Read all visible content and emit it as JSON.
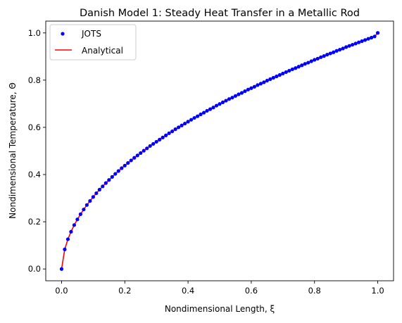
{
  "chart_data": {
    "type": "line",
    "title": "Danish Model 1: Steady Heat Transfer in a Metallic Rod",
    "xlabel": "Nondimensional Length, ξ",
    "ylabel": "Nondimensional Temperature, Θ",
    "xlim": [
      -0.05,
      1.05
    ],
    "ylim": [
      -0.05,
      1.05
    ],
    "xticks": [
      "0.0",
      "0.2",
      "0.4",
      "0.6",
      "0.8",
      "1.0"
    ],
    "yticks": [
      "0.0",
      "0.2",
      "0.4",
      "0.6",
      "0.8",
      "1.0"
    ],
    "grid": false,
    "legend_position": "top-left",
    "series": [
      {
        "name": "JOTS",
        "style": "markers",
        "color": "#0000ff",
        "x": [
          0.0,
          0.01,
          0.02,
          0.03,
          0.04,
          0.05,
          0.06,
          0.07,
          0.08,
          0.09,
          0.1,
          0.11,
          0.12,
          0.13,
          0.14,
          0.15,
          0.16,
          0.17,
          0.18,
          0.19,
          0.2,
          0.21,
          0.22,
          0.23,
          0.24,
          0.25,
          0.26,
          0.27,
          0.28,
          0.29,
          0.3,
          0.31,
          0.32,
          0.33,
          0.34,
          0.35,
          0.36,
          0.37,
          0.38,
          0.39,
          0.4,
          0.41,
          0.42,
          0.43,
          0.44,
          0.45,
          0.46,
          0.47,
          0.48,
          0.49,
          0.5,
          0.51,
          0.52,
          0.53,
          0.54,
          0.55,
          0.56,
          0.57,
          0.58,
          0.59,
          0.6,
          0.61,
          0.62,
          0.63,
          0.64,
          0.65,
          0.66,
          0.67,
          0.68,
          0.69,
          0.7,
          0.71,
          0.72,
          0.73,
          0.74,
          0.75,
          0.76,
          0.77,
          0.78,
          0.79,
          0.8,
          0.81,
          0.82,
          0.83,
          0.84,
          0.85,
          0.86,
          0.87,
          0.88,
          0.89,
          0.9,
          0.91,
          0.92,
          0.93,
          0.94,
          0.95,
          0.96,
          0.97,
          0.98,
          0.99,
          1.0
        ],
        "y": [
          0.0,
          0.083,
          0.126,
          0.158,
          0.186,
          0.21,
          0.232,
          0.252,
          0.271,
          0.288,
          0.305,
          0.321,
          0.336,
          0.35,
          0.364,
          0.377,
          0.39,
          0.403,
          0.415,
          0.427,
          0.438,
          0.449,
          0.46,
          0.471,
          0.481,
          0.491,
          0.501,
          0.511,
          0.521,
          0.53,
          0.539,
          0.548,
          0.557,
          0.566,
          0.575,
          0.583,
          0.592,
          0.6,
          0.608,
          0.616,
          0.624,
          0.632,
          0.64,
          0.647,
          0.655,
          0.662,
          0.67,
          0.677,
          0.684,
          0.692,
          0.699,
          0.706,
          0.713,
          0.72,
          0.726,
          0.733,
          0.74,
          0.746,
          0.753,
          0.76,
          0.766,
          0.772,
          0.779,
          0.785,
          0.791,
          0.798,
          0.804,
          0.81,
          0.816,
          0.822,
          0.828,
          0.834,
          0.84,
          0.846,
          0.851,
          0.857,
          0.863,
          0.869,
          0.874,
          0.88,
          0.886,
          0.891,
          0.897,
          0.902,
          0.908,
          0.913,
          0.918,
          0.924,
          0.929,
          0.934,
          0.94,
          0.945,
          0.95,
          0.955,
          0.96,
          0.965,
          0.97,
          0.975,
          0.98,
          0.985,
          1.0
        ]
      },
      {
        "name": "Analytical",
        "style": "line",
        "color": "#ff0000",
        "x": [
          0.0,
          0.01,
          0.02,
          0.03,
          0.04,
          0.05,
          0.06,
          0.07,
          0.08,
          0.09,
          0.1,
          0.11,
          0.12,
          0.13,
          0.14,
          0.15,
          0.16,
          0.17,
          0.18,
          0.19,
          0.2,
          0.21,
          0.22,
          0.23,
          0.24,
          0.25,
          0.26,
          0.27,
          0.28,
          0.29,
          0.3,
          0.31,
          0.32,
          0.33,
          0.34,
          0.35,
          0.36,
          0.37,
          0.38,
          0.39,
          0.4,
          0.41,
          0.42,
          0.43,
          0.44,
          0.45,
          0.46,
          0.47,
          0.48,
          0.49,
          0.5,
          0.51,
          0.52,
          0.53,
          0.54,
          0.55,
          0.56,
          0.57,
          0.58,
          0.59,
          0.6,
          0.61,
          0.62,
          0.63,
          0.64,
          0.65,
          0.66,
          0.67,
          0.68,
          0.69,
          0.7,
          0.71,
          0.72,
          0.73,
          0.74,
          0.75,
          0.76,
          0.77,
          0.78,
          0.79,
          0.8,
          0.81,
          0.82,
          0.83,
          0.84,
          0.85,
          0.86,
          0.87,
          0.88,
          0.89,
          0.9,
          0.91,
          0.92,
          0.93,
          0.94,
          0.95,
          0.96,
          0.97,
          0.98,
          0.99,
          1.0
        ],
        "y": [
          0.0,
          0.083,
          0.126,
          0.158,
          0.186,
          0.21,
          0.232,
          0.252,
          0.271,
          0.288,
          0.305,
          0.321,
          0.336,
          0.35,
          0.364,
          0.377,
          0.39,
          0.403,
          0.415,
          0.427,
          0.438,
          0.449,
          0.46,
          0.471,
          0.481,
          0.491,
          0.501,
          0.511,
          0.521,
          0.53,
          0.539,
          0.548,
          0.557,
          0.566,
          0.575,
          0.583,
          0.592,
          0.6,
          0.608,
          0.616,
          0.624,
          0.632,
          0.64,
          0.647,
          0.655,
          0.662,
          0.67,
          0.677,
          0.684,
          0.692,
          0.699,
          0.706,
          0.713,
          0.72,
          0.726,
          0.733,
          0.74,
          0.746,
          0.753,
          0.76,
          0.766,
          0.772,
          0.779,
          0.785,
          0.791,
          0.798,
          0.804,
          0.81,
          0.816,
          0.822,
          0.828,
          0.834,
          0.84,
          0.846,
          0.851,
          0.857,
          0.863,
          0.869,
          0.874,
          0.88,
          0.886,
          0.891,
          0.897,
          0.902,
          0.908,
          0.913,
          0.918,
          0.924,
          0.929,
          0.934,
          0.94,
          0.945,
          0.95,
          0.955,
          0.96,
          0.965,
          0.97,
          0.975,
          0.98,
          0.985,
          1.0
        ]
      }
    ]
  }
}
